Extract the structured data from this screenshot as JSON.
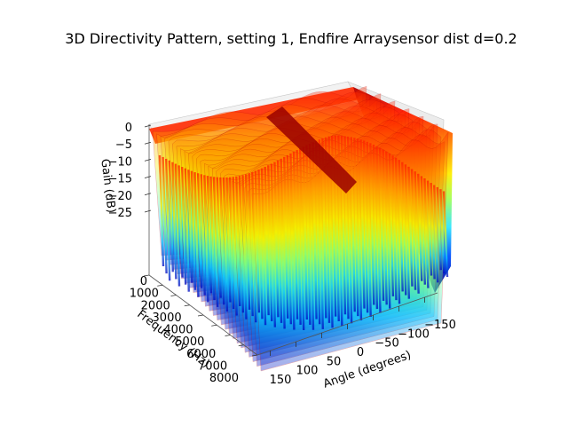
{
  "chart_data": {
    "type": "surface3d",
    "title": "3D Directivity Pattern, setting 1,  Endfire Arraysensor dist d=0.2",
    "xlabel": "Angle (degrees)",
    "ylabel": "Frequency (Hz)",
    "zlabel": "Gain (dB)",
    "x_ticks": [
      "150",
      "100",
      "50",
      "0",
      "−50",
      "−100",
      "−150"
    ],
    "y_ticks": [
      "0",
      "1000",
      "2000",
      "3000",
      "4000",
      "5000",
      "6000",
      "7000",
      "8000"
    ],
    "z_ticks": [
      "0",
      "−5",
      "−10",
      "−15",
      "−20",
      "−25"
    ],
    "xlim": [
      -180,
      180
    ],
    "ylim": [
      0,
      8000
    ],
    "zlim": [
      -30,
      0
    ],
    "colormap": "jet",
    "grid": true
  }
}
